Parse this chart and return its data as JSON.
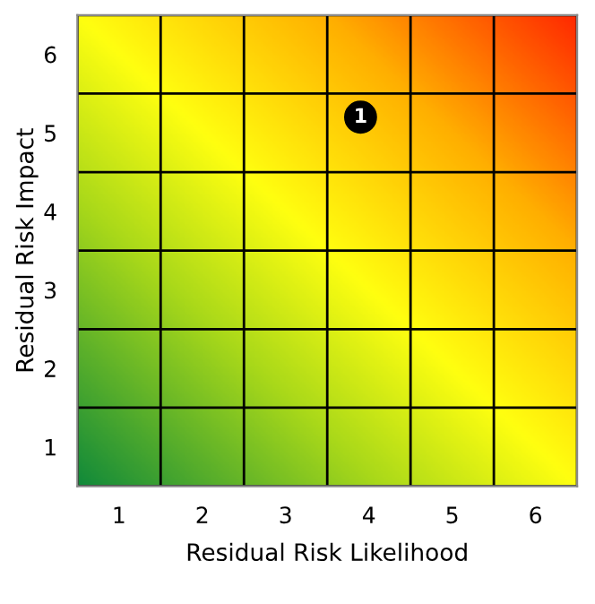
{
  "chart_data": {
    "type": "scatter",
    "xlabel": "Residual Risk Likelihood",
    "ylabel": "Residual Risk Impact",
    "x": [
      3.9
    ],
    "values": [
      5.2
    ],
    "annotations": [
      {
        "text": "1",
        "x": 3.9,
        "y": 5.2
      }
    ],
    "color": "#000000",
    "marker": "circle",
    "xlim": [
      0.5,
      6.5
    ],
    "ylim": [
      0.5,
      6.5
    ],
    "xticks": [
      {
        "value": 0.5,
        "label": null
      },
      1,
      {
        "value": 1.5,
        "label": null
      },
      2,
      {
        "value": 2.5,
        "label": null
      },
      3,
      {
        "value": 3.5,
        "label": null
      },
      4,
      {
        "value": 4.5,
        "label": null
      },
      5,
      {
        "value": 5.5,
        "label": null
      },
      6,
      {
        "value": 6.5,
        "label": null
      }
    ],
    "yticks": [
      {
        "value": 0.5,
        "label": null
      },
      1,
      {
        "value": 1.5,
        "label": null
      },
      2,
      {
        "value": 2.5,
        "label": null
      },
      3,
      {
        "value": 3.5,
        "label": null
      },
      4,
      {
        "value": 4.5,
        "label": null
      },
      5,
      {
        "value": 5.5,
        "label": null
      },
      6,
      {
        "value": 6.5,
        "label": null
      }
    ],
    "grid": true
  }
}
